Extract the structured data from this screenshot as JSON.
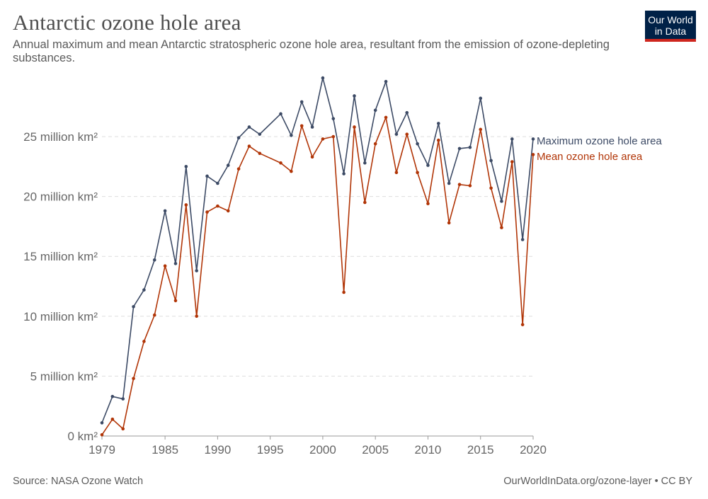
{
  "title": "Antarctic ozone hole area",
  "subtitle": "Annual maximum and mean Antarctic stratospheric ozone hole area, resultant from the emission of ozone-depleting substances.",
  "logo": {
    "line1": "Our World",
    "line2": "in Data",
    "bg_color": "#002147",
    "accent_color": "#ce261e"
  },
  "source": "Source: NASA Ozone Watch",
  "credit": "OurWorldInData.org/ozone-layer • CC BY",
  "chart_data": {
    "type": "line",
    "title": "Antarctic ozone hole area",
    "xlabel": "",
    "ylabel": "",
    "xlim": [
      1979,
      2020
    ],
    "ylim": [
      0,
      25000000
    ],
    "grid": true,
    "legend_placement": "right",
    "x_ticks": [
      {
        "value": 1979,
        "label": "1979"
      },
      {
        "value": 1985,
        "label": "1985"
      },
      {
        "value": 1990,
        "label": "1990"
      },
      {
        "value": 1995,
        "label": "1995"
      },
      {
        "value": 2000,
        "label": "2000"
      },
      {
        "value": 2005,
        "label": "2005"
      },
      {
        "value": 2010,
        "label": "2010"
      },
      {
        "value": 2015,
        "label": "2015"
      },
      {
        "value": 2020,
        "label": "2020"
      }
    ],
    "y_ticks": [
      {
        "value": 0,
        "label": "0 km²"
      },
      {
        "value": 5000000,
        "label": "5 million km²"
      },
      {
        "value": 10000000,
        "label": "10 million km²"
      },
      {
        "value": 15000000,
        "label": "15 million km²"
      },
      {
        "value": 20000000,
        "label": "20 million km²"
      },
      {
        "value": 25000000,
        "label": "25 million km²"
      }
    ],
    "x": [
      1979,
      1980,
      1981,
      1982,
      1983,
      1984,
      1985,
      1986,
      1987,
      1988,
      1989,
      1990,
      1991,
      1992,
      1993,
      1994,
      1996,
      1997,
      1998,
      1999,
      2000,
      2001,
      2002,
      2003,
      2004,
      2005,
      2006,
      2007,
      2008,
      2009,
      2010,
      2011,
      2012,
      2013,
      2014,
      2015,
      2016,
      2017,
      2018,
      2019,
      2020
    ],
    "series": [
      {
        "name": "Maximum ozone hole area",
        "color": "#3c4a65",
        "values": [
          1100000,
          3300000,
          3100000,
          10800000,
          12200000,
          14700000,
          18800000,
          14400000,
          22500000,
          13800000,
          21700000,
          21100000,
          22600000,
          24900000,
          25800000,
          25200000,
          26900000,
          25100000,
          27900000,
          25800000,
          29900000,
          26500000,
          21900000,
          28400000,
          22800000,
          27200000,
          29600000,
          25200000,
          27000000,
          24400000,
          22600000,
          26100000,
          21100000,
          24000000,
          24100000,
          28200000,
          23000000,
          19600000,
          24800000,
          16400000,
          24800000
        ]
      },
      {
        "name": "Mean ozone hole area",
        "color": "#b13507",
        "values": [
          100000,
          1400000,
          600000,
          4800000,
          7900000,
          10100000,
          14200000,
          11300000,
          19300000,
          10000000,
          18700000,
          19200000,
          18800000,
          22300000,
          24200000,
          23600000,
          22800000,
          22100000,
          25900000,
          23300000,
          24800000,
          25000000,
          12000000,
          25800000,
          19500000,
          24400000,
          26600000,
          22000000,
          25200000,
          22000000,
          19400000,
          24700000,
          17800000,
          21000000,
          20900000,
          25600000,
          20700000,
          17400000,
          22900000,
          9300000,
          23500000
        ]
      }
    ]
  }
}
